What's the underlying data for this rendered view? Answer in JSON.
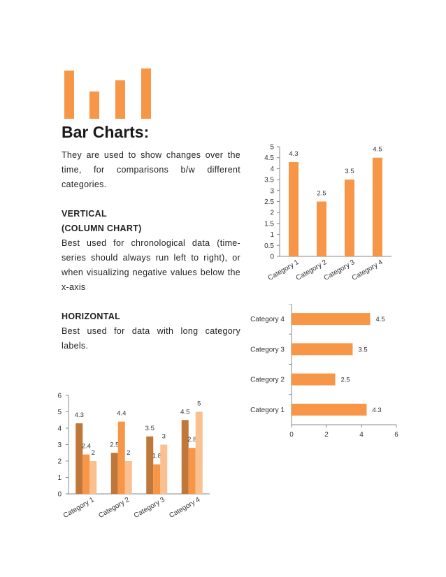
{
  "colors": {
    "accent": "#F79646",
    "dark": "#C0773A",
    "light": "#FAC090"
  },
  "page": {
    "title": "Bar Charts:",
    "intro": "They are used to show changes over the time, for comparisons b/w different categories.",
    "vertical_heading_1": "VERTICAL",
    "vertical_heading_2": "(COLUMN CHART)",
    "vertical_text": "Best used for chronological data (time-series should always run left to right), or when visualizing negative values below the x-axis",
    "horizontal_heading": "HORIZONTAL",
    "horizontal_text": "Best used for data with long category labels."
  },
  "chart_data": [
    {
      "type": "bar",
      "orientation": "vertical",
      "categories": [
        "Category 1",
        "Category 2",
        "Category 3",
        "Category 4"
      ],
      "values": [
        4.3,
        2.5,
        3.5,
        4.5
      ],
      "ylim": [
        0,
        5
      ],
      "yticks": [
        "0",
        "0.5",
        "1",
        "1.5",
        "2",
        "2.5",
        "3",
        "3.5",
        "4",
        "4.5",
        "5"
      ],
      "data_labels": [
        "4.3",
        "2.5",
        "3.5",
        "4.5"
      ],
      "color": "#F79646"
    },
    {
      "type": "bar",
      "orientation": "horizontal",
      "categories": [
        "Category 1",
        "Category 2",
        "Category 3",
        "Category 4"
      ],
      "values": [
        4.3,
        2.5,
        3.5,
        4.5
      ],
      "xlim": [
        0,
        6
      ],
      "xticks": [
        "0",
        "2",
        "4",
        "6"
      ],
      "data_labels": [
        "4.3",
        "2.5",
        "3.5",
        "4.5"
      ],
      "color": "#F79646"
    },
    {
      "type": "bar",
      "orientation": "vertical",
      "categories": [
        "Category 1",
        "Category 2",
        "Category 3",
        "Category 4"
      ],
      "series": [
        {
          "values": [
            4.3,
            2.5,
            3.5,
            4.5
          ],
          "data_labels": [
            "4.3",
            "2.5",
            "3.5",
            "4.5"
          ],
          "color": "#C0773A"
        },
        {
          "values": [
            2.4,
            4.4,
            1.8,
            2.8
          ],
          "data_labels": [
            "2.4",
            "4.4",
            "1.8",
            "2.8"
          ],
          "color": "#F79646"
        },
        {
          "values": [
            2,
            2,
            3,
            5
          ],
          "data_labels": [
            "2",
            "2",
            "3",
            "5"
          ],
          "color": "#FAC090"
        }
      ],
      "ylim": [
        0,
        6
      ],
      "yticks": [
        "0",
        "1",
        "2",
        "3",
        "4",
        "5",
        "6"
      ]
    }
  ]
}
